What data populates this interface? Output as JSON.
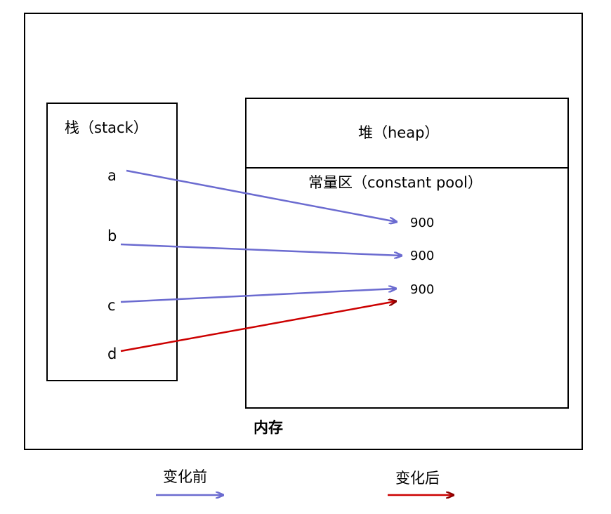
{
  "memory": {
    "label": "内存"
  },
  "stack": {
    "title": "栈（stack）",
    "vars": [
      "a",
      "b",
      "c",
      "d"
    ]
  },
  "heap": {
    "title": "堆（heap）",
    "pool_title": "常量区（constant pool）",
    "values": [
      "900",
      "900",
      "900"
    ]
  },
  "legend": {
    "before": "变化前",
    "after": "变化后"
  },
  "colors": {
    "before_arrow": "#6b6bd0",
    "after_arrow": "#cc0000",
    "after_arrowhead": "#8b0000"
  }
}
